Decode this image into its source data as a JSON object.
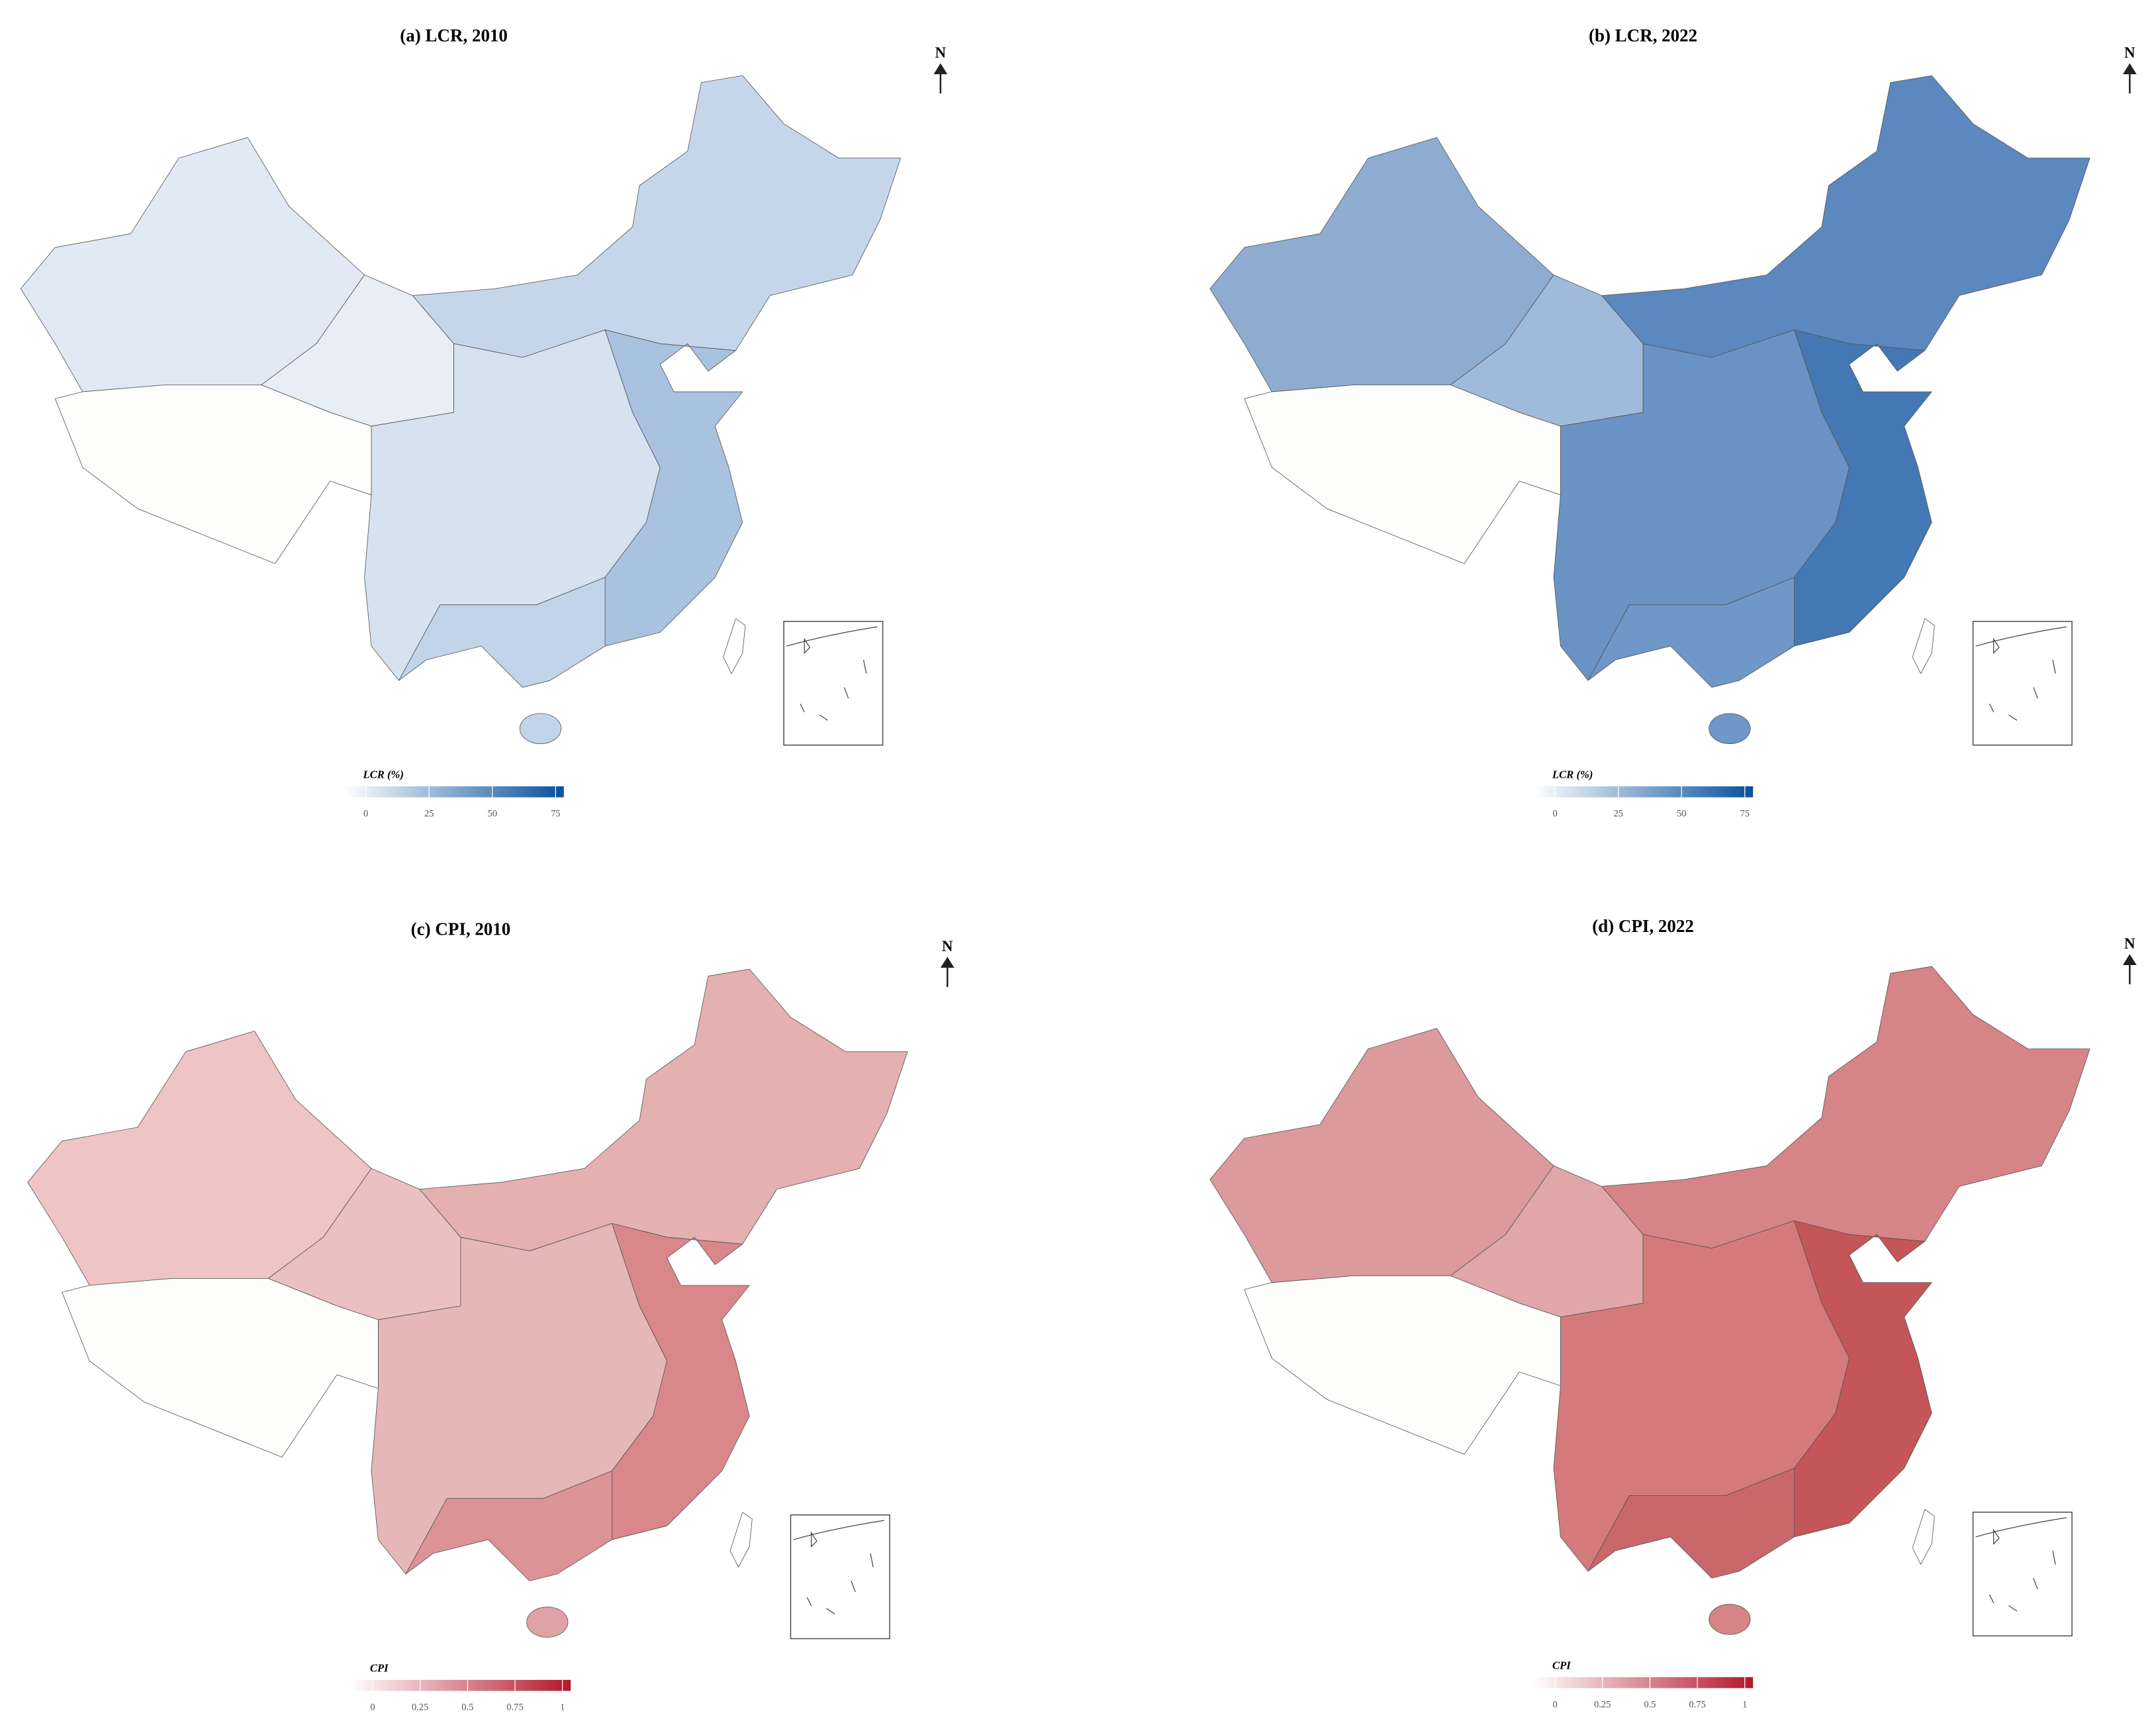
{
  "panels": [
    {
      "title": "(a) LCR, 2010",
      "north": "N",
      "legend": {
        "title": "LCR (%)",
        "ticks": [
          0,
          25,
          50,
          75
        ]
      }
    },
    {
      "title": "(b) LCR, 2022",
      "north": "N",
      "legend": {
        "title": "LCR (%)",
        "ticks": [
          0,
          25,
          50,
          75
        ]
      }
    },
    {
      "title": "(c) CPI, 2010",
      "north": "N",
      "legend": {
        "title": "CPI",
        "ticks": [
          0,
          0.25,
          0.5,
          0.75,
          1
        ]
      }
    },
    {
      "title": "(d) CPI, 2022",
      "north": "N",
      "legend": {
        "title": "CPI",
        "ticks": [
          0,
          0.25,
          0.5,
          0.75,
          1
        ]
      }
    }
  ]
}
